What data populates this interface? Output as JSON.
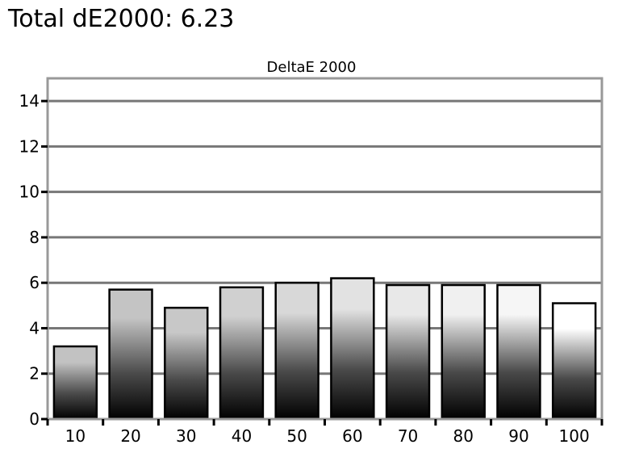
{
  "headline": "Total dE2000: 6.23",
  "chart_data": {
    "type": "bar",
    "title": "DeltaE 2000",
    "xlabel": "",
    "ylabel": "",
    "categories": [
      "10",
      "20",
      "30",
      "40",
      "50",
      "60",
      "70",
      "80",
      "90",
      "100"
    ],
    "values": [
      3.2,
      5.7,
      4.9,
      5.8,
      6.0,
      6.2,
      5.9,
      5.9,
      5.9,
      5.1
    ],
    "bar_top_colors": [
      "#c2c2c2",
      "#c4c4c4",
      "#c8c8c8",
      "#d0d0d0",
      "#d8d8d8",
      "#e2e2e2",
      "#e8e8e8",
      "#f0f0f0",
      "#f6f6f6",
      "#ffffff"
    ],
    "yticks": [
      0,
      2,
      4,
      6,
      8,
      10,
      12,
      14
    ],
    "ylim": [
      0,
      15
    ],
    "grid": true,
    "legend": "none",
    "colors": {
      "plot_border": "#999999",
      "gridline": "#777777",
      "bar_outline": "#000000",
      "bar_bottom": "#000000"
    }
  }
}
